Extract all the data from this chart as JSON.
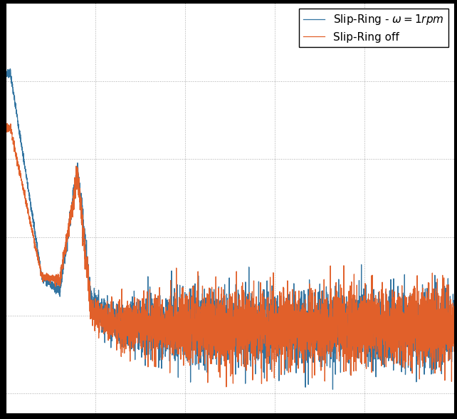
{
  "legend_labels": [
    "Slip-Ring - $\\omega = 1rpm$",
    "Slip-Ring off"
  ],
  "colors": [
    "#3274a1",
    "#e1602a"
  ],
  "line_width": 0.9,
  "background_color": "#ffffff",
  "outer_background": "#000000",
  "grid_color": "#aaaaaa",
  "grid_style": ":",
  "figsize": [
    6.42,
    5.88
  ],
  "dpi": 100,
  "xlim": [
    0,
    500
  ],
  "ylim": [
    -0.05,
    1.0
  ]
}
